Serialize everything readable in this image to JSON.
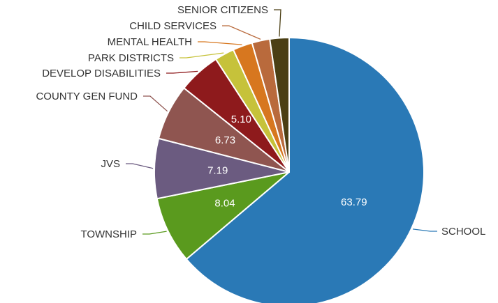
{
  "chart_data": {
    "type": "pie",
    "title": "",
    "start_angle_deg": 0,
    "direction": "clockwise",
    "slices": [
      {
        "label": "SCHOOL",
        "value": 63.79,
        "color": "#2a79b6",
        "show_value": true
      },
      {
        "label": "TOWNSHIP",
        "value": 8.04,
        "color": "#5a9a1e",
        "show_value": true
      },
      {
        "label": "JVS",
        "value": 7.19,
        "color": "#6b5b80",
        "show_value": true
      },
      {
        "label": "COUNTY GEN FUND",
        "value": 6.73,
        "color": "#8f5550",
        "show_value": true
      },
      {
        "label": "DEVELOP DISABILITIES",
        "value": 5.1,
        "color": "#8e1a1c",
        "show_value": true
      },
      {
        "label": "PARK DISTRICTS",
        "value": 2.35,
        "color": "#c6c23a",
        "show_value": false
      },
      {
        "label": "MENTAL HEALTH",
        "value": 2.35,
        "color": "#d7771f",
        "show_value": false
      },
      {
        "label": "CHILD SERVICES",
        "value": 2.15,
        "color": "#b96a3c",
        "show_value": false
      },
      {
        "label": "SENIOR CITIZENS",
        "value": 2.3,
        "color": "#4b3f14",
        "show_value": false
      }
    ]
  }
}
